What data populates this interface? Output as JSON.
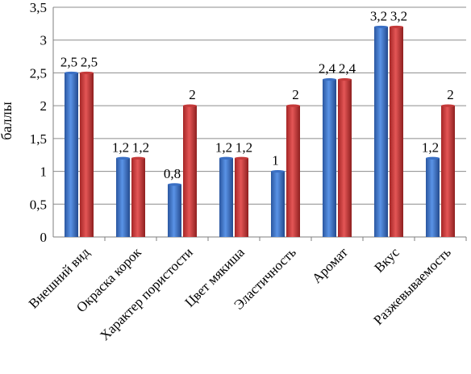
{
  "chart_data": {
    "type": "bar",
    "title": "",
    "xlabel": "",
    "ylabel": "баллы",
    "ylim": [
      0,
      3.5
    ],
    "yticks": [
      "0",
      "0,5",
      "1",
      "1,5",
      "2",
      "2,5",
      "3",
      "3,5"
    ],
    "grid": true,
    "categories": [
      "Внешний вид",
      "Окраска корок",
      "Характер пористости",
      "Цвет мякиша",
      "Эластичность",
      "Аромат",
      "Вкус",
      "Разжевываемость"
    ],
    "series": [
      {
        "color": "#3a6fc4",
        "values": [
          2.5,
          1.2,
          0.8,
          1.2,
          1.0,
          2.4,
          3.2,
          1.2
        ],
        "labels": [
          "2,5",
          "1,2",
          "0,8",
          "1,2",
          "1",
          "2,4",
          "3,2",
          "1,2"
        ]
      },
      {
        "color": "#c43a3a",
        "values": [
          2.5,
          1.2,
          2.0,
          1.2,
          2.0,
          2.4,
          3.2,
          2.0
        ],
        "labels": [
          "2,5",
          "1,2",
          "2",
          "1,2",
          "2",
          "2,4",
          "3,2",
          "2"
        ]
      }
    ]
  }
}
